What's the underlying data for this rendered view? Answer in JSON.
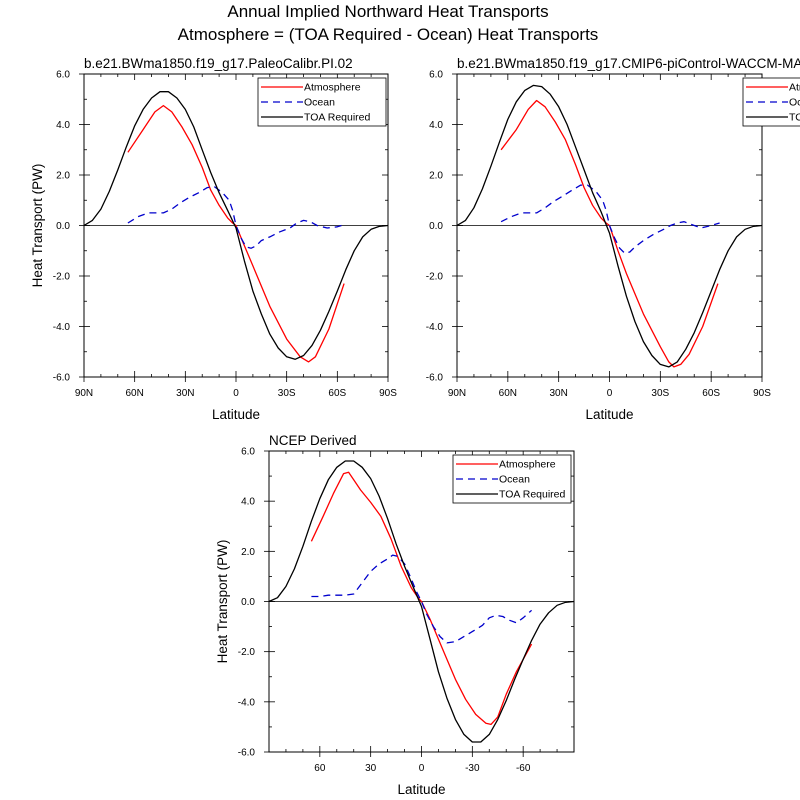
{
  "figure": {
    "title_line1": "Annual Implied Northward Heat Transports",
    "title_line2": "Atmosphere = (TOA Required - Ocean) Heat Transports"
  },
  "colors": {
    "atmosphere": "#ff0000",
    "ocean": "#0000cc",
    "toa": "#000000"
  },
  "chart_data": [
    {
      "type": "line",
      "title": "b.e21.BWma1850.f19_g17.PaleoCalibr.PI.02",
      "xlabel": "Latitude",
      "ylabel": "Heat Transport (PW)",
      "xlim": [
        90,
        -90
      ],
      "ylim": [
        -6,
        6
      ],
      "xticks": [
        90,
        60,
        30,
        0,
        -30,
        -60,
        -90
      ],
      "xtick_labels": [
        "90N",
        "60N",
        "30N",
        "0",
        "30S",
        "60S",
        "90S"
      ],
      "yticks": [
        6,
        4,
        2,
        0,
        -2,
        -4,
        -6
      ],
      "ytick_labels": [
        "6.0",
        "4.0",
        "2.0",
        "0.0",
        "-2.0",
        "-4.0",
        "-6.0"
      ],
      "legend": [
        "Atmosphere",
        "Ocean",
        "TOA Required"
      ],
      "series": [
        {
          "name": "Atmosphere",
          "x": [
            64,
            55,
            48,
            43,
            38,
            32,
            26,
            20,
            15,
            10,
            5,
            2,
            0,
            -5,
            -10,
            -20,
            -30,
            -38,
            -43,
            -47,
            -55,
            -64
          ],
          "y": [
            2.9,
            3.8,
            4.5,
            4.75,
            4.5,
            3.9,
            3.2,
            2.3,
            1.4,
            0.8,
            0.3,
            0.1,
            0,
            -0.8,
            -1.6,
            -3.2,
            -4.5,
            -5.2,
            -5.4,
            -5.2,
            -4.1,
            -2.3
          ]
        },
        {
          "name": "Ocean",
          "x": [
            64,
            58,
            52,
            47,
            43,
            38,
            33,
            28,
            22,
            17,
            13,
            8,
            4,
            2,
            0,
            -3,
            -6,
            -9,
            -12,
            -15,
            -20,
            -26,
            -32,
            -36,
            -40,
            -44,
            -48,
            -54,
            -60,
            -65
          ],
          "y": [
            0.1,
            0.35,
            0.5,
            0.5,
            0.5,
            0.65,
            0.9,
            1.1,
            1.3,
            1.5,
            1.55,
            1.3,
            1.0,
            0.6,
            0.0,
            -0.5,
            -0.85,
            -0.9,
            -0.8,
            -0.6,
            -0.45,
            -0.25,
            -0.1,
            0.1,
            0.2,
            0.15,
            0.0,
            -0.1,
            -0.05,
            0.05
          ]
        },
        {
          "name": "TOA Required",
          "x": [
            90,
            85,
            80,
            75,
            70,
            65,
            60,
            55,
            50,
            45,
            40,
            35,
            30,
            25,
            20,
            15,
            10,
            5,
            0,
            -5,
            -10,
            -15,
            -20,
            -25,
            -30,
            -35,
            -40,
            -45,
            -50,
            -55,
            -60,
            -65,
            -70,
            -75,
            -80,
            -85,
            -90
          ],
          "y": [
            0,
            0.2,
            0.65,
            1.35,
            2.2,
            3.1,
            3.95,
            4.6,
            5.05,
            5.3,
            5.3,
            5.05,
            4.6,
            3.9,
            3.0,
            2.1,
            1.3,
            0.6,
            -0.1,
            -1.4,
            -2.6,
            -3.5,
            -4.3,
            -4.85,
            -5.2,
            -5.3,
            -5.15,
            -4.75,
            -4.15,
            -3.4,
            -2.6,
            -1.75,
            -1.0,
            -0.45,
            -0.15,
            -0.03,
            0
          ]
        }
      ]
    },
    {
      "type": "line",
      "title": "b.e21.BWma1850.f19_g17.CMIP6-piControl-WACCM-MA",
      "xlabel": "Latitude",
      "ylabel": "",
      "xlim": [
        90,
        -90
      ],
      "ylim": [
        -6,
        6
      ],
      "xticks": [
        90,
        60,
        30,
        0,
        -30,
        -60,
        -90
      ],
      "xtick_labels": [
        "90N",
        "60N",
        "30N",
        "0",
        "30S",
        "60S",
        "90S"
      ],
      "yticks": [
        6,
        4,
        2,
        0,
        -2,
        -4,
        -6
      ],
      "ytick_labels": [
        "6.0",
        "4.0",
        "2.0",
        "0.0",
        "-2.0",
        "-4.0",
        "-6.0"
      ],
      "legend": [
        "Atmosphere",
        "Ocean",
        "TOA Required"
      ],
      "series": [
        {
          "name": "Atmosphere",
          "x": [
            64,
            55,
            48,
            43,
            38,
            32,
            26,
            20,
            15,
            10,
            5,
            2,
            0,
            -5,
            -10,
            -20,
            -30,
            -35,
            -38,
            -42,
            -47,
            -55,
            -64
          ],
          "y": [
            3.0,
            3.8,
            4.6,
            4.95,
            4.7,
            4.1,
            3.4,
            2.4,
            1.5,
            0.8,
            0.3,
            0.1,
            0,
            -1.0,
            -1.9,
            -3.5,
            -4.8,
            -5.4,
            -5.6,
            -5.5,
            -5.1,
            -4.0,
            -2.3
          ]
        },
        {
          "name": "Ocean",
          "x": [
            64,
            58,
            52,
            47,
            43,
            38,
            33,
            28,
            22,
            17,
            13,
            8,
            4,
            2,
            0,
            -3,
            -6,
            -9,
            -12,
            -15,
            -20,
            -26,
            -32,
            -36,
            -40,
            -44,
            -48,
            -54,
            -60,
            -65
          ],
          "y": [
            0.15,
            0.35,
            0.5,
            0.5,
            0.5,
            0.7,
            0.95,
            1.15,
            1.4,
            1.6,
            1.6,
            1.35,
            1.0,
            0.6,
            0.0,
            -0.5,
            -0.9,
            -1.1,
            -1.05,
            -0.85,
            -0.6,
            -0.35,
            -0.15,
            0.0,
            0.1,
            0.15,
            0.05,
            -0.1,
            0.0,
            0.1
          ]
        },
        {
          "name": "TOA Required",
          "x": [
            90,
            85,
            80,
            75,
            70,
            65,
            60,
            55,
            50,
            45,
            40,
            35,
            30,
            25,
            20,
            15,
            10,
            5,
            0,
            -5,
            -10,
            -15,
            -20,
            -25,
            -30,
            -35,
            -40,
            -45,
            -50,
            -55,
            -60,
            -65,
            -70,
            -75,
            -80,
            -85,
            -90
          ],
          "y": [
            0,
            0.2,
            0.7,
            1.45,
            2.35,
            3.3,
            4.2,
            4.9,
            5.35,
            5.55,
            5.5,
            5.2,
            4.7,
            4.0,
            3.1,
            2.2,
            1.3,
            0.55,
            -0.3,
            -1.6,
            -2.8,
            -3.8,
            -4.6,
            -5.15,
            -5.5,
            -5.6,
            -5.4,
            -4.9,
            -4.25,
            -3.45,
            -2.6,
            -1.75,
            -1.0,
            -0.45,
            -0.15,
            -0.03,
            0
          ]
        }
      ]
    },
    {
      "type": "line",
      "title": "NCEP Derived",
      "xlabel": "Latitude",
      "ylabel": "Heat Transport (PW)",
      "xlim": [
        90,
        -90
      ],
      "ylim": [
        -6,
        6
      ],
      "xticks": [
        60,
        30,
        0,
        -30,
        -60
      ],
      "xtick_labels": [
        "60",
        "30",
        "0",
        "-30",
        "-60"
      ],
      "yticks": [
        6,
        4,
        2,
        0,
        -2,
        -4,
        -6
      ],
      "ytick_labels": [
        "6.0",
        "4.0",
        "2.0",
        "0.0",
        "-2.0",
        "-4.0",
        "-6.0"
      ],
      "legend": [
        "Atmosphere",
        "Ocean",
        "TOA Required"
      ],
      "series": [
        {
          "name": "Atmosphere",
          "x": [
            65,
            58,
            52,
            46,
            43,
            40,
            36,
            30,
            24,
            18,
            12,
            6,
            2,
            0,
            -5,
            -10,
            -15,
            -20,
            -26,
            -32,
            -38,
            -41,
            -45,
            -50,
            -56,
            -65
          ],
          "y": [
            2.4,
            3.4,
            4.3,
            5.1,
            5.15,
            4.85,
            4.45,
            3.95,
            3.4,
            2.5,
            1.4,
            0.55,
            0.15,
            0,
            -0.7,
            -1.5,
            -2.3,
            -3.1,
            -3.9,
            -4.5,
            -4.85,
            -4.9,
            -4.6,
            -3.7,
            -2.8,
            -1.7
          ]
        },
        {
          "name": "Ocean",
          "x": [
            65,
            60,
            55,
            50,
            45,
            40,
            35,
            30,
            25,
            20,
            17,
            14,
            10,
            6,
            3,
            0,
            -3,
            -7,
            -11,
            -15,
            -20,
            -25,
            -30,
            -36,
            -40,
            -44,
            -48,
            -52,
            -56,
            -60,
            -65
          ],
          "y": [
            0.2,
            0.2,
            0.25,
            0.25,
            0.25,
            0.3,
            0.75,
            1.2,
            1.5,
            1.7,
            1.85,
            1.8,
            1.5,
            0.9,
            0.4,
            0.0,
            -0.5,
            -1.0,
            -1.4,
            -1.65,
            -1.6,
            -1.4,
            -1.2,
            -0.95,
            -0.65,
            -0.55,
            -0.6,
            -0.75,
            -0.85,
            -0.65,
            -0.35
          ]
        },
        {
          "name": "TOA Required",
          "x": [
            90,
            85,
            80,
            75,
            70,
            65,
            60,
            55,
            50,
            45,
            40,
            35,
            30,
            25,
            20,
            15,
            10,
            5,
            0,
            -5,
            -10,
            -15,
            -20,
            -25,
            -30,
            -35,
            -40,
            -45,
            -50,
            -55,
            -60,
            -65,
            -70,
            -75,
            -80,
            -85,
            -90
          ],
          "y": [
            0,
            0.15,
            0.6,
            1.3,
            2.2,
            3.2,
            4.1,
            4.85,
            5.35,
            5.6,
            5.6,
            5.35,
            4.9,
            4.2,
            3.3,
            2.3,
            1.4,
            0.6,
            -0.2,
            -1.5,
            -2.8,
            -3.85,
            -4.7,
            -5.3,
            -5.6,
            -5.6,
            -5.3,
            -4.7,
            -3.95,
            -3.1,
            -2.3,
            -1.55,
            -0.9,
            -0.45,
            -0.15,
            -0.03,
            0
          ]
        }
      ]
    }
  ]
}
